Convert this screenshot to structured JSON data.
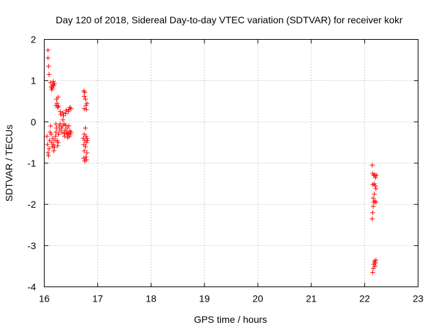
{
  "chart_data": {
    "type": "scatter",
    "title": "Day 120 of 2018, Sidereal Day-to-day VTEC variation (SDTVAR) for receiver kokr",
    "xlabel": "GPS time / hours",
    "ylabel": "SDTVAR / TECUs",
    "xlim": [
      16,
      23
    ],
    "ylim": [
      -4,
      2
    ],
    "xticks": [
      "16",
      "17",
      "18",
      "19",
      "20",
      "21",
      "22",
      "23"
    ],
    "yticks": [
      "2",
      "1",
      "0",
      "-1",
      "-2",
      "-3",
      "-4"
    ],
    "grid": true,
    "marker": "+",
    "colors": {
      "points": "#ff0000",
      "grid": "#a0a0a0",
      "frame": "#000000"
    },
    "series": [
      {
        "name": "SDTVAR",
        "points": [
          [
            16.07,
            1.74
          ],
          [
            16.07,
            1.55
          ],
          [
            16.08,
            1.35
          ],
          [
            16.09,
            1.15
          ],
          [
            16.12,
            0.95
          ],
          [
            16.13,
            0.85
          ],
          [
            16.14,
            0.78
          ],
          [
            16.15,
            0.82
          ],
          [
            16.16,
            0.9
          ],
          [
            16.17,
            0.98
          ],
          [
            16.18,
            0.88
          ],
          [
            16.19,
            0.93
          ],
          [
            16.05,
            -0.35
          ],
          [
            16.06,
            -0.55
          ],
          [
            16.07,
            -0.75
          ],
          [
            16.08,
            -0.82
          ],
          [
            16.09,
            -0.65
          ],
          [
            16.1,
            -0.45
          ],
          [
            16.11,
            -0.25
          ],
          [
            16.12,
            -0.1
          ],
          [
            16.13,
            -0.3
          ],
          [
            16.14,
            -0.5
          ],
          [
            16.15,
            -0.6
          ],
          [
            16.16,
            -0.4
          ],
          [
            16.17,
            -0.55
          ],
          [
            16.18,
            -0.7
          ],
          [
            16.19,
            -0.62
          ],
          [
            16.2,
            -0.45
          ],
          [
            16.21,
            -0.35
          ],
          [
            16.22,
            -0.25
          ],
          [
            16.22,
            -0.05
          ],
          [
            16.23,
            -0.15
          ],
          [
            16.24,
            -0.45
          ],
          [
            16.25,
            -0.58
          ],
          [
            16.26,
            -0.5
          ],
          [
            16.27,
            -0.3
          ],
          [
            16.22,
            0.4
          ],
          [
            16.23,
            0.55
          ],
          [
            16.24,
            0.45
          ],
          [
            16.25,
            0.35
          ],
          [
            16.26,
            0.6
          ],
          [
            16.27,
            0.38
          ],
          [
            16.28,
            -0.1
          ],
          [
            16.29,
            -0.2
          ],
          [
            16.3,
            -0.05
          ],
          [
            16.3,
            0.25
          ],
          [
            16.31,
            0.18
          ],
          [
            16.32,
            -0.15
          ],
          [
            16.33,
            -0.25
          ],
          [
            16.34,
            -0.1
          ],
          [
            16.35,
            0.05
          ],
          [
            16.35,
            0.22
          ],
          [
            16.36,
            0.15
          ],
          [
            16.37,
            -0.05
          ],
          [
            16.37,
            -0.28
          ],
          [
            16.38,
            -0.35
          ],
          [
            16.39,
            -0.2
          ],
          [
            16.4,
            -0.08
          ],
          [
            16.4,
            0.2
          ],
          [
            16.41,
            0.28
          ],
          [
            16.42,
            -0.25
          ],
          [
            16.43,
            -0.3
          ],
          [
            16.43,
            -0.15
          ],
          [
            16.44,
            -0.38
          ],
          [
            16.45,
            0.25
          ],
          [
            16.45,
            -0.28
          ],
          [
            16.46,
            -0.1
          ],
          [
            16.46,
            0.3
          ],
          [
            16.47,
            -0.35
          ],
          [
            16.48,
            -0.22
          ],
          [
            16.48,
            0.35
          ],
          [
            16.49,
            -0.3
          ],
          [
            16.5,
            0.32
          ],
          [
            16.5,
            -0.25
          ],
          [
            16.74,
            0.75
          ],
          [
            16.75,
            0.62
          ],
          [
            16.75,
            0.32
          ],
          [
            16.76,
            0.72
          ],
          [
            16.77,
            0.55
          ],
          [
            16.78,
            0.4
          ],
          [
            16.79,
            0.3
          ],
          [
            16.8,
            0.45
          ],
          [
            16.73,
            -0.4
          ],
          [
            16.74,
            -0.55
          ],
          [
            16.74,
            -0.88
          ],
          [
            16.75,
            -0.7
          ],
          [
            16.75,
            -0.3
          ],
          [
            16.76,
            -0.45
          ],
          [
            16.76,
            -0.95
          ],
          [
            16.77,
            -0.15
          ],
          [
            16.77,
            -0.6
          ],
          [
            16.78,
            -0.35
          ],
          [
            16.78,
            -0.85
          ],
          [
            16.79,
            -0.5
          ],
          [
            16.79,
            -0.92
          ],
          [
            16.8,
            -0.4
          ],
          [
            16.8,
            -0.75
          ],
          [
            16.81,
            -0.45
          ],
          [
            22.14,
            -1.05
          ],
          [
            22.15,
            -1.25
          ],
          [
            22.15,
            -1.52
          ],
          [
            22.16,
            -1.85
          ],
          [
            22.16,
            -2.05
          ],
          [
            22.15,
            -2.2
          ],
          [
            22.14,
            -2.35
          ],
          [
            22.17,
            -1.3
          ],
          [
            22.17,
            -1.95
          ],
          [
            22.18,
            -1.5
          ],
          [
            22.18,
            -1.75
          ],
          [
            22.19,
            -1.28
          ],
          [
            22.19,
            -1.92
          ],
          [
            22.2,
            -1.55
          ],
          [
            22.2,
            -1.35
          ],
          [
            22.21,
            -1.62
          ],
          [
            22.21,
            -1.95
          ],
          [
            22.22,
            -1.3
          ],
          [
            22.15,
            -3.65
          ],
          [
            22.16,
            -3.55
          ],
          [
            22.17,
            -3.45
          ],
          [
            22.18,
            -3.38
          ],
          [
            22.19,
            -3.5
          ],
          [
            22.2,
            -3.42
          ],
          [
            22.21,
            -3.35
          ]
        ]
      }
    ]
  }
}
